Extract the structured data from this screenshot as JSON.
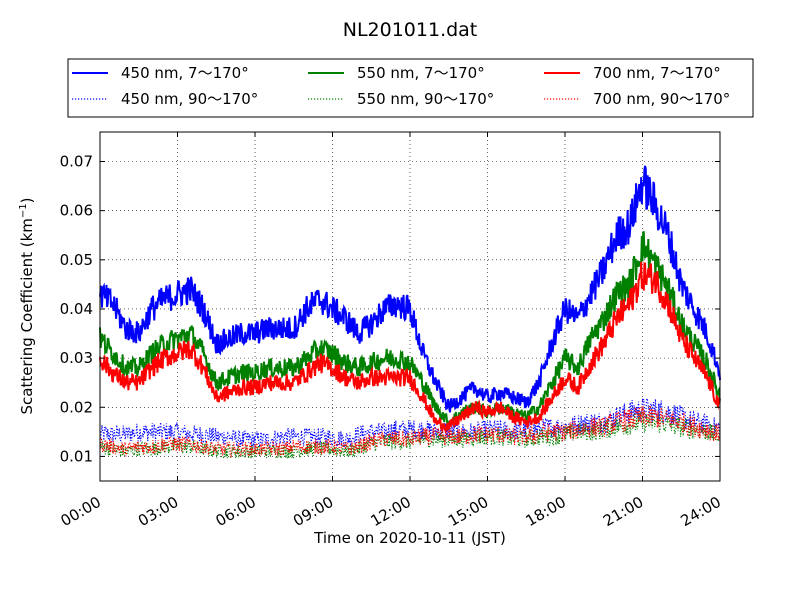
{
  "chart_data": {
    "type": "line",
    "title": "NL201011.dat",
    "xlabel": "Time on 2020-10-11 (JST)",
    "ylabel_main": "Scattering Coefficient (km",
    "ylabel_sup": "−1",
    "ylabel_end": ")",
    "xlim": [
      0,
      24
    ],
    "ylim": [
      0.005,
      0.076
    ],
    "grid": true,
    "legend_position": "top",
    "x_ticks": [
      0,
      3,
      6,
      9,
      12,
      15,
      18,
      21,
      24
    ],
    "x_tick_labels": [
      "00:00",
      "03:00",
      "06:00",
      "09:00",
      "12:00",
      "15:00",
      "18:00",
      "21:00",
      "24:00"
    ],
    "y_ticks": [
      0.01,
      0.02,
      0.03,
      0.04,
      0.05,
      0.06,
      0.07
    ],
    "y_tick_labels": [
      "0.01",
      "0.02",
      "0.03",
      "0.04",
      "0.05",
      "0.06",
      "0.07"
    ],
    "series": [
      {
        "name": "450 nm, 7～170°",
        "color": "#0000ff",
        "style": "solid",
        "x": [
          0,
          0.5,
          1,
          1.5,
          2,
          2.5,
          3,
          3.5,
          4,
          4.5,
          5,
          5.5,
          6,
          6.5,
          7,
          7.5,
          8,
          8.5,
          9,
          9.5,
          10,
          10.5,
          11,
          11.5,
          12,
          12.5,
          13,
          13.5,
          14,
          14.5,
          15,
          15.5,
          16,
          16.5,
          17,
          17.5,
          18,
          18.5,
          19,
          19.5,
          20,
          20.5,
          21,
          21.5,
          22,
          22.5,
          23,
          23.5,
          24
        ],
        "values": [
          0.043,
          0.041,
          0.036,
          0.035,
          0.04,
          0.042,
          0.043,
          0.044,
          0.04,
          0.033,
          0.034,
          0.035,
          0.035,
          0.036,
          0.036,
          0.036,
          0.04,
          0.042,
          0.04,
          0.038,
          0.035,
          0.037,
          0.04,
          0.041,
          0.04,
          0.031,
          0.025,
          0.02,
          0.022,
          0.024,
          0.022,
          0.023,
          0.022,
          0.021,
          0.025,
          0.033,
          0.04,
          0.038,
          0.043,
          0.048,
          0.055,
          0.057,
          0.066,
          0.061,
          0.055,
          0.045,
          0.04,
          0.035,
          0.027
        ]
      },
      {
        "name": "450 nm, 90～170°",
        "color": "#0000ff",
        "style": "dotted",
        "x": [
          0,
          0.5,
          1,
          1.5,
          2,
          2.5,
          3,
          3.5,
          4,
          4.5,
          5,
          5.5,
          6,
          6.5,
          7,
          7.5,
          8,
          8.5,
          9,
          9.5,
          10,
          10.5,
          11,
          11.5,
          12,
          12.5,
          13,
          13.5,
          14,
          14.5,
          15,
          15.5,
          16,
          16.5,
          17,
          17.5,
          18,
          18.5,
          19,
          19.5,
          20,
          20.5,
          21,
          21.5,
          22,
          22.5,
          23,
          23.5,
          24
        ],
        "values": [
          0.0145,
          0.0145,
          0.0145,
          0.015,
          0.015,
          0.015,
          0.015,
          0.0145,
          0.0145,
          0.014,
          0.014,
          0.0135,
          0.0135,
          0.0135,
          0.014,
          0.014,
          0.014,
          0.014,
          0.014,
          0.0135,
          0.0145,
          0.015,
          0.015,
          0.0155,
          0.0155,
          0.0155,
          0.015,
          0.0155,
          0.015,
          0.015,
          0.0155,
          0.0155,
          0.015,
          0.0155,
          0.0155,
          0.016,
          0.016,
          0.0165,
          0.017,
          0.017,
          0.018,
          0.019,
          0.0195,
          0.0195,
          0.019,
          0.018,
          0.017,
          0.0165,
          0.0155
        ]
      },
      {
        "name": "550 nm, 7～170°",
        "color": "#008000",
        "style": "solid",
        "x": [
          0,
          0.5,
          1,
          1.5,
          2,
          2.5,
          3,
          3.5,
          4,
          4.5,
          5,
          5.5,
          6,
          6.5,
          7,
          7.5,
          8,
          8.5,
          9,
          9.5,
          10,
          10.5,
          11,
          11.5,
          12,
          12.5,
          13,
          13.5,
          14,
          14.5,
          15,
          15.5,
          16,
          16.5,
          17,
          17.5,
          18,
          18.5,
          19,
          19.5,
          20,
          20.5,
          21,
          21.5,
          22,
          22.5,
          23,
          23.5,
          24
        ],
        "values": [
          0.034,
          0.031,
          0.028,
          0.028,
          0.031,
          0.033,
          0.034,
          0.035,
          0.031,
          0.025,
          0.026,
          0.027,
          0.027,
          0.028,
          0.028,
          0.028,
          0.03,
          0.032,
          0.031,
          0.029,
          0.028,
          0.029,
          0.03,
          0.03,
          0.029,
          0.025,
          0.02,
          0.017,
          0.019,
          0.02,
          0.019,
          0.02,
          0.019,
          0.018,
          0.02,
          0.025,
          0.03,
          0.028,
          0.034,
          0.038,
          0.043,
          0.045,
          0.053,
          0.049,
          0.044,
          0.037,
          0.033,
          0.029,
          0.022
        ]
      },
      {
        "name": "550 nm, 90～170°",
        "color": "#008000",
        "style": "dotted",
        "x": [
          0,
          0.5,
          1,
          1.5,
          2,
          2.5,
          3,
          3.5,
          4,
          4.5,
          5,
          5.5,
          6,
          6.5,
          7,
          7.5,
          8,
          8.5,
          9,
          9.5,
          10,
          10.5,
          11,
          11.5,
          12,
          12.5,
          13,
          13.5,
          14,
          14.5,
          15,
          15.5,
          16,
          16.5,
          17,
          17.5,
          18,
          18.5,
          19,
          19.5,
          20,
          20.5,
          21,
          21.5,
          22,
          22.5,
          23,
          23.5,
          24
        ],
        "values": [
          0.012,
          0.0115,
          0.011,
          0.0115,
          0.0115,
          0.012,
          0.012,
          0.012,
          0.0115,
          0.011,
          0.011,
          0.011,
          0.011,
          0.011,
          0.011,
          0.011,
          0.0115,
          0.0115,
          0.0115,
          0.011,
          0.0115,
          0.0125,
          0.013,
          0.013,
          0.013,
          0.0135,
          0.0135,
          0.0135,
          0.0135,
          0.014,
          0.014,
          0.014,
          0.0135,
          0.0135,
          0.014,
          0.014,
          0.0145,
          0.015,
          0.015,
          0.0155,
          0.016,
          0.0165,
          0.017,
          0.017,
          0.0165,
          0.016,
          0.0155,
          0.015,
          0.014
        ]
      },
      {
        "name": "700 nm, 7～170°",
        "color": "#ff0000",
        "style": "solid",
        "x": [
          0,
          0.5,
          1,
          1.5,
          2,
          2.5,
          3,
          3.5,
          4,
          4.5,
          5,
          5.5,
          6,
          6.5,
          7,
          7.5,
          8,
          8.5,
          9,
          9.5,
          10,
          10.5,
          11,
          11.5,
          12,
          12.5,
          13,
          13.5,
          14,
          14.5,
          15,
          15.5,
          16,
          16.5,
          17,
          17.5,
          18,
          18.5,
          19,
          19.5,
          20,
          20.5,
          21,
          21.5,
          22,
          22.5,
          23,
          23.5,
          24
        ],
        "values": [
          0.03,
          0.027,
          0.025,
          0.025,
          0.028,
          0.03,
          0.031,
          0.032,
          0.028,
          0.022,
          0.023,
          0.024,
          0.024,
          0.025,
          0.025,
          0.025,
          0.027,
          0.029,
          0.028,
          0.026,
          0.025,
          0.026,
          0.026,
          0.026,
          0.026,
          0.022,
          0.017,
          0.016,
          0.018,
          0.02,
          0.019,
          0.02,
          0.018,
          0.017,
          0.018,
          0.022,
          0.026,
          0.024,
          0.029,
          0.033,
          0.038,
          0.041,
          0.047,
          0.046,
          0.041,
          0.034,
          0.03,
          0.026,
          0.02
        ]
      },
      {
        "name": "700 nm, 90～170°",
        "color": "#ff0000",
        "style": "dotted",
        "x": [
          0,
          0.5,
          1,
          1.5,
          2,
          2.5,
          3,
          3.5,
          4,
          4.5,
          5,
          5.5,
          6,
          6.5,
          7,
          7.5,
          8,
          8.5,
          9,
          9.5,
          10,
          10.5,
          11,
          11.5,
          12,
          12.5,
          13,
          13.5,
          14,
          14.5,
          15,
          15.5,
          16,
          16.5,
          17,
          17.5,
          18,
          18.5,
          19,
          19.5,
          20,
          20.5,
          21,
          21.5,
          22,
          22.5,
          23,
          23.5,
          24
        ],
        "values": [
          0.0125,
          0.012,
          0.0115,
          0.012,
          0.012,
          0.0125,
          0.0125,
          0.0125,
          0.012,
          0.0115,
          0.0115,
          0.0115,
          0.0115,
          0.0115,
          0.0115,
          0.012,
          0.012,
          0.012,
          0.012,
          0.0115,
          0.012,
          0.013,
          0.0135,
          0.0135,
          0.0135,
          0.014,
          0.014,
          0.014,
          0.014,
          0.0145,
          0.0145,
          0.0145,
          0.014,
          0.014,
          0.0145,
          0.015,
          0.015,
          0.0155,
          0.016,
          0.016,
          0.017,
          0.0175,
          0.018,
          0.018,
          0.0175,
          0.017,
          0.016,
          0.0155,
          0.0145
        ]
      }
    ]
  }
}
